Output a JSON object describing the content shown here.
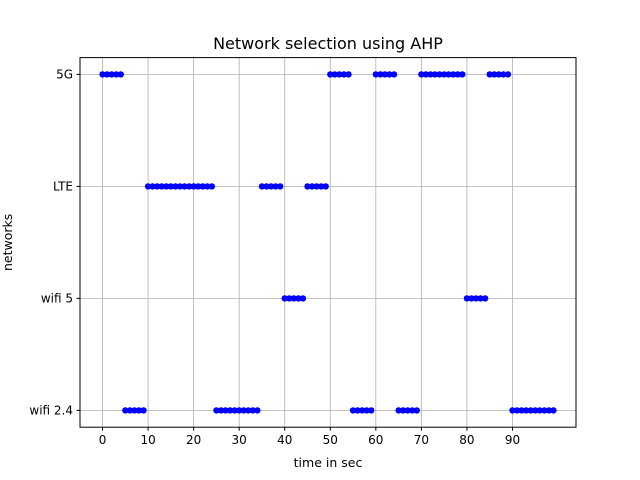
{
  "chart_data": {
    "type": "scatter",
    "title": "Network selection using AHP",
    "xlabel": "time in sec",
    "ylabel": "networks",
    "xlim": [
      -4.95,
      103.95
    ],
    "ylim": [
      -0.15,
      3.15
    ],
    "xticks": [
      0,
      10,
      20,
      30,
      40,
      50,
      60,
      70,
      80,
      90
    ],
    "yticks": [
      {
        "label": "5G",
        "value": 3
      },
      {
        "label": "LTE",
        "value": 2
      },
      {
        "label": "wifi 5",
        "value": 1
      },
      {
        "label": "wifi 2.4",
        "value": 0
      }
    ],
    "grid": true,
    "marker_color": "#0000ff",
    "series": [
      {
        "values": [
          "5G",
          "5G",
          "5G",
          "5G",
          "5G",
          "wifi 2.4",
          "wifi 2.4",
          "wifi 2.4",
          "wifi 2.4",
          "wifi 2.4",
          "LTE",
          "LTE",
          "LTE",
          "LTE",
          "LTE",
          "LTE",
          "LTE",
          "LTE",
          "LTE",
          "LTE",
          "LTE",
          "LTE",
          "LTE",
          "LTE",
          "LTE",
          "wifi 2.4",
          "wifi 2.4",
          "wifi 2.4",
          "wifi 2.4",
          "wifi 2.4",
          "wifi 2.4",
          "wifi 2.4",
          "wifi 2.4",
          "wifi 2.4",
          "wifi 2.4",
          "LTE",
          "LTE",
          "LTE",
          "LTE",
          "LTE",
          "wifi 5",
          "wifi 5",
          "wifi 5",
          "wifi 5",
          "wifi 5",
          "LTE",
          "LTE",
          "LTE",
          "LTE",
          "LTE",
          "5G",
          "5G",
          "5G",
          "5G",
          "5G",
          "wifi 2.4",
          "wifi 2.4",
          "wifi 2.4",
          "wifi 2.4",
          "wifi 2.4",
          "5G",
          "5G",
          "5G",
          "5G",
          "5G",
          "wifi 2.4",
          "wifi 2.4",
          "wifi 2.4",
          "wifi 2.4",
          "wifi 2.4",
          "5G",
          "5G",
          "5G",
          "5G",
          "5G",
          "5G",
          "5G",
          "5G",
          "5G",
          "5G",
          "wifi 5",
          "wifi 5",
          "wifi 5",
          "wifi 5",
          "wifi 5",
          "5G",
          "5G",
          "5G",
          "5G",
          "5G",
          "wifi 2.4",
          "wifi 2.4",
          "wifi 2.4",
          "wifi 2.4",
          "wifi 2.4",
          "wifi 2.4",
          "wifi 2.4",
          "wifi 2.4",
          "wifi 2.4",
          "wifi 2.4"
        ]
      }
    ]
  }
}
